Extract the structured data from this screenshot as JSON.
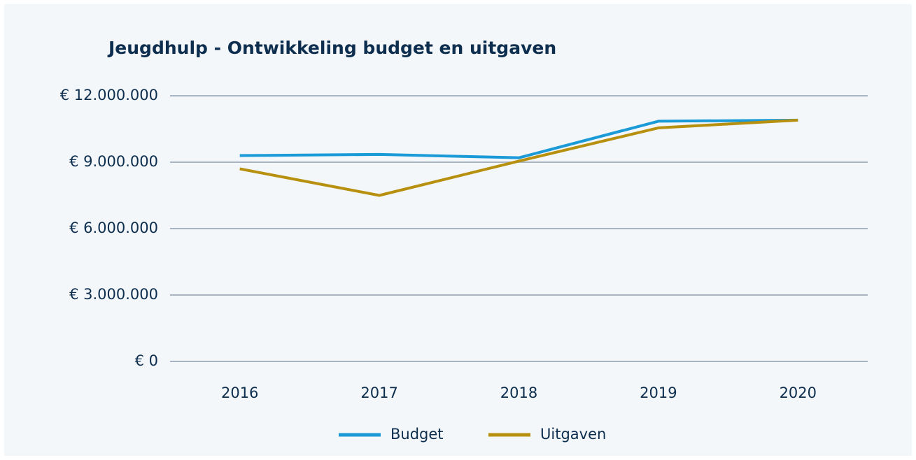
{
  "chart_data": {
    "type": "line",
    "title": "Jeugdhulp - Ontwikkeling budget en uitgaven",
    "categories": [
      "2016",
      "2017",
      "2018",
      "2019",
      "2020"
    ],
    "series": [
      {
        "name": "Budget",
        "color": "#1a9ad6",
        "values": [
          9300000,
          9350000,
          9200000,
          10850000,
          10900000
        ]
      },
      {
        "name": "Uitgaven",
        "color": "#b8900f",
        "values": [
          8700000,
          7500000,
          9050000,
          10550000,
          10900000
        ]
      }
    ],
    "ylim": [
      0,
      12000000
    ],
    "yticks": [
      {
        "value": 0,
        "label": "€ 0"
      },
      {
        "value": 3000000,
        "label": "€ 3.000.000"
      },
      {
        "value": 6000000,
        "label": "€ 6.000.000"
      },
      {
        "value": 9000000,
        "label": "€ 9.000.000"
      },
      {
        "value": 12000000,
        "label": "€ 12.000.000"
      }
    ],
    "grid": true,
    "legend": "bottom"
  }
}
